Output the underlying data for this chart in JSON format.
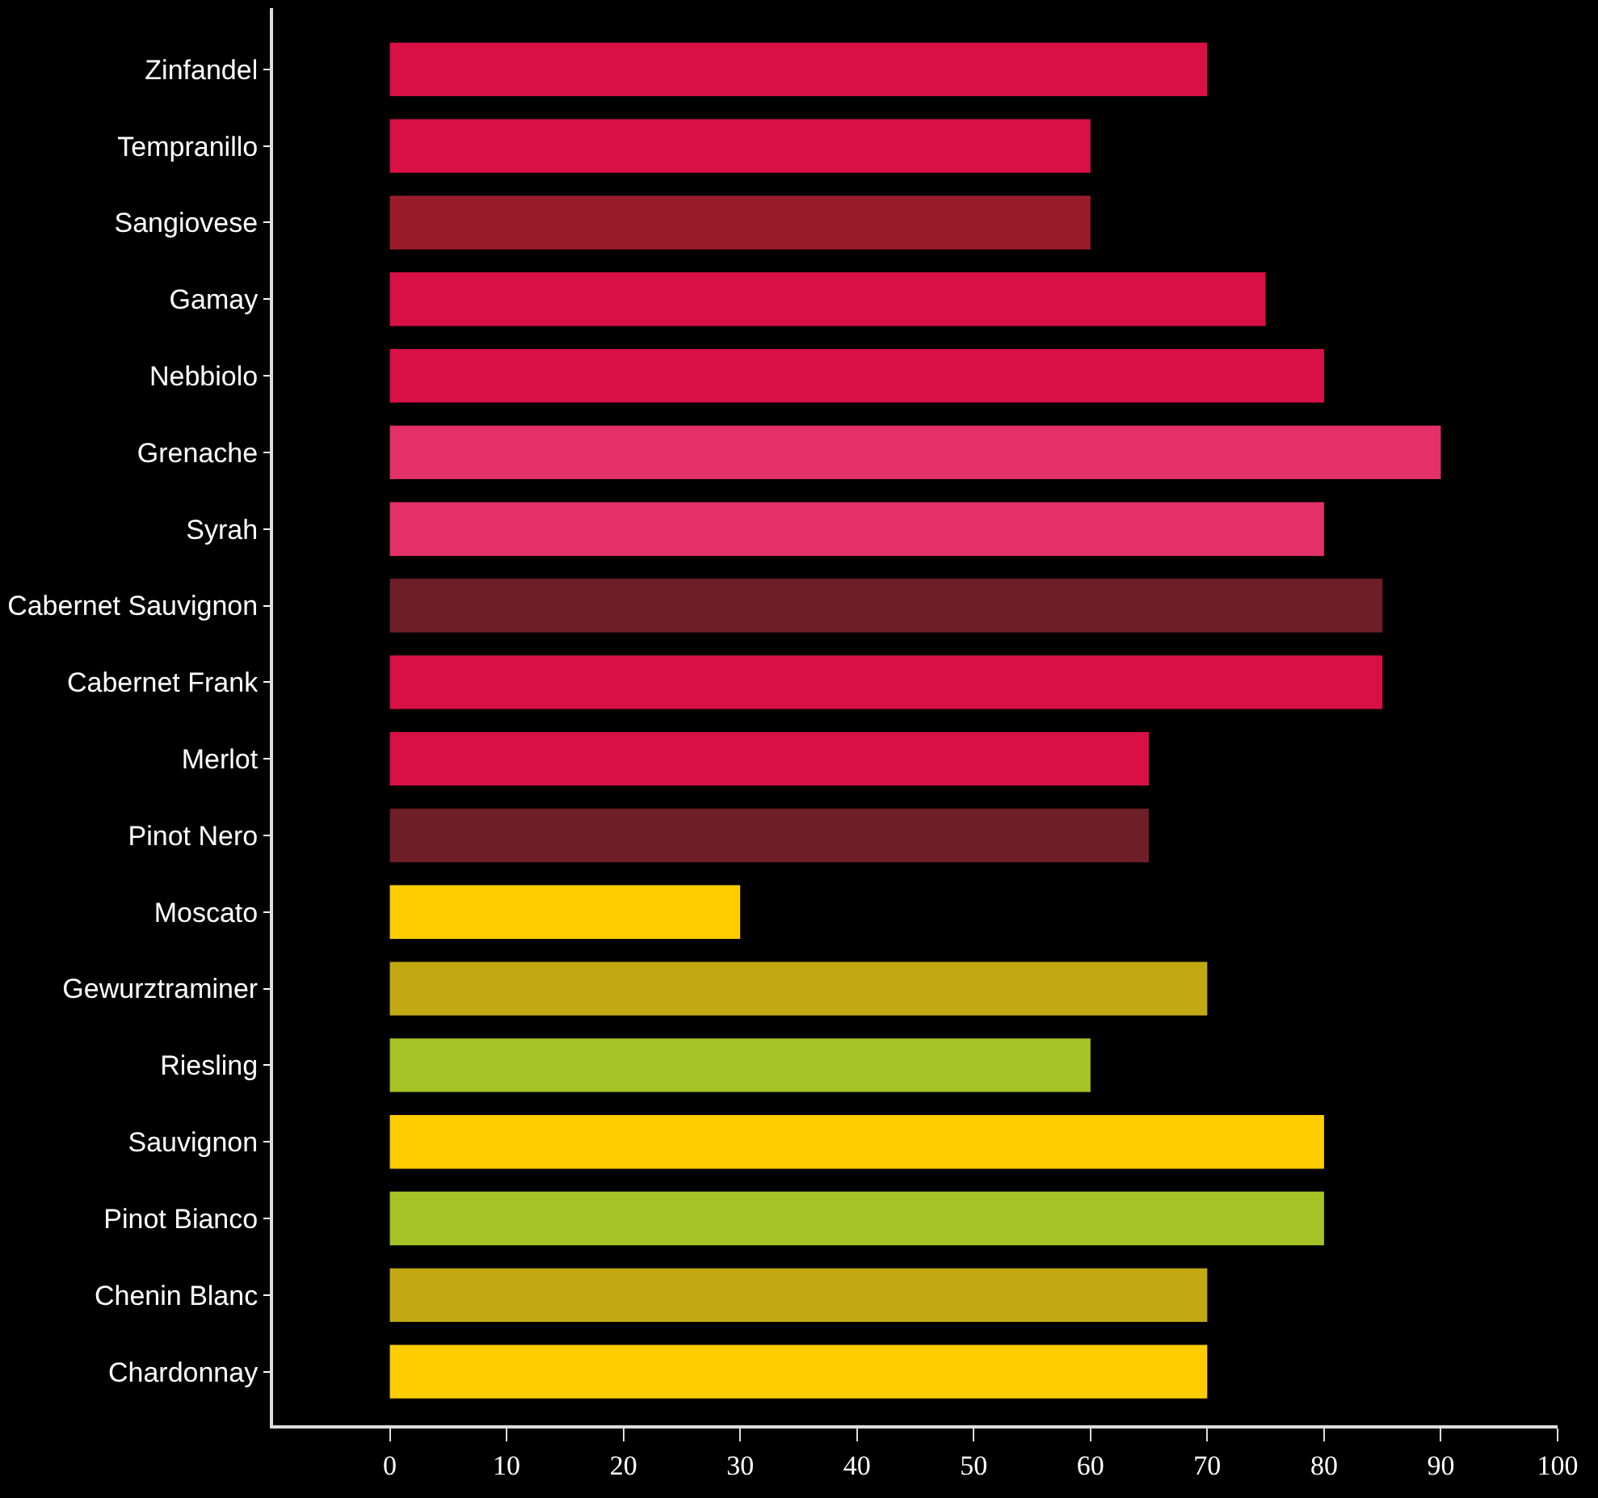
{
  "chart_data": {
    "type": "bar",
    "orientation": "horizontal",
    "categories": [
      "Zinfandel",
      "Tempranillo",
      "Sangiovese",
      "Gamay",
      "Nebbiolo",
      "Grenache",
      "Syrah",
      "Cabernet Sauvignon",
      "Cabernet Frank",
      "Merlot",
      "Pinot Nero",
      "Moscato",
      "Gewurztraminer",
      "Riesling",
      "Sauvignon",
      "Pinot Bianco",
      "Chenin Blanc",
      "Chardonnay"
    ],
    "values": [
      70,
      60,
      60,
      75,
      80,
      90,
      80,
      85,
      85,
      65,
      65,
      30,
      70,
      60,
      80,
      80,
      70,
      70
    ],
    "colors": [
      "#d81046",
      "#d81046",
      "#9a1c2a",
      "#d81046",
      "#d81046",
      "#e3306a",
      "#e3306a",
      "#6e1e26",
      "#d81046",
      "#d81046",
      "#6e1e26",
      "#ffcc00",
      "#c2a914",
      "#a6c224",
      "#ffcc00",
      "#a6c224",
      "#c2a914",
      "#ffcc00"
    ],
    "xlim": [
      -10,
      100
    ],
    "xticks": [
      0,
      10,
      20,
      30,
      40,
      50,
      60,
      70,
      80,
      90,
      100
    ],
    "grid": false,
    "legend": false
  }
}
